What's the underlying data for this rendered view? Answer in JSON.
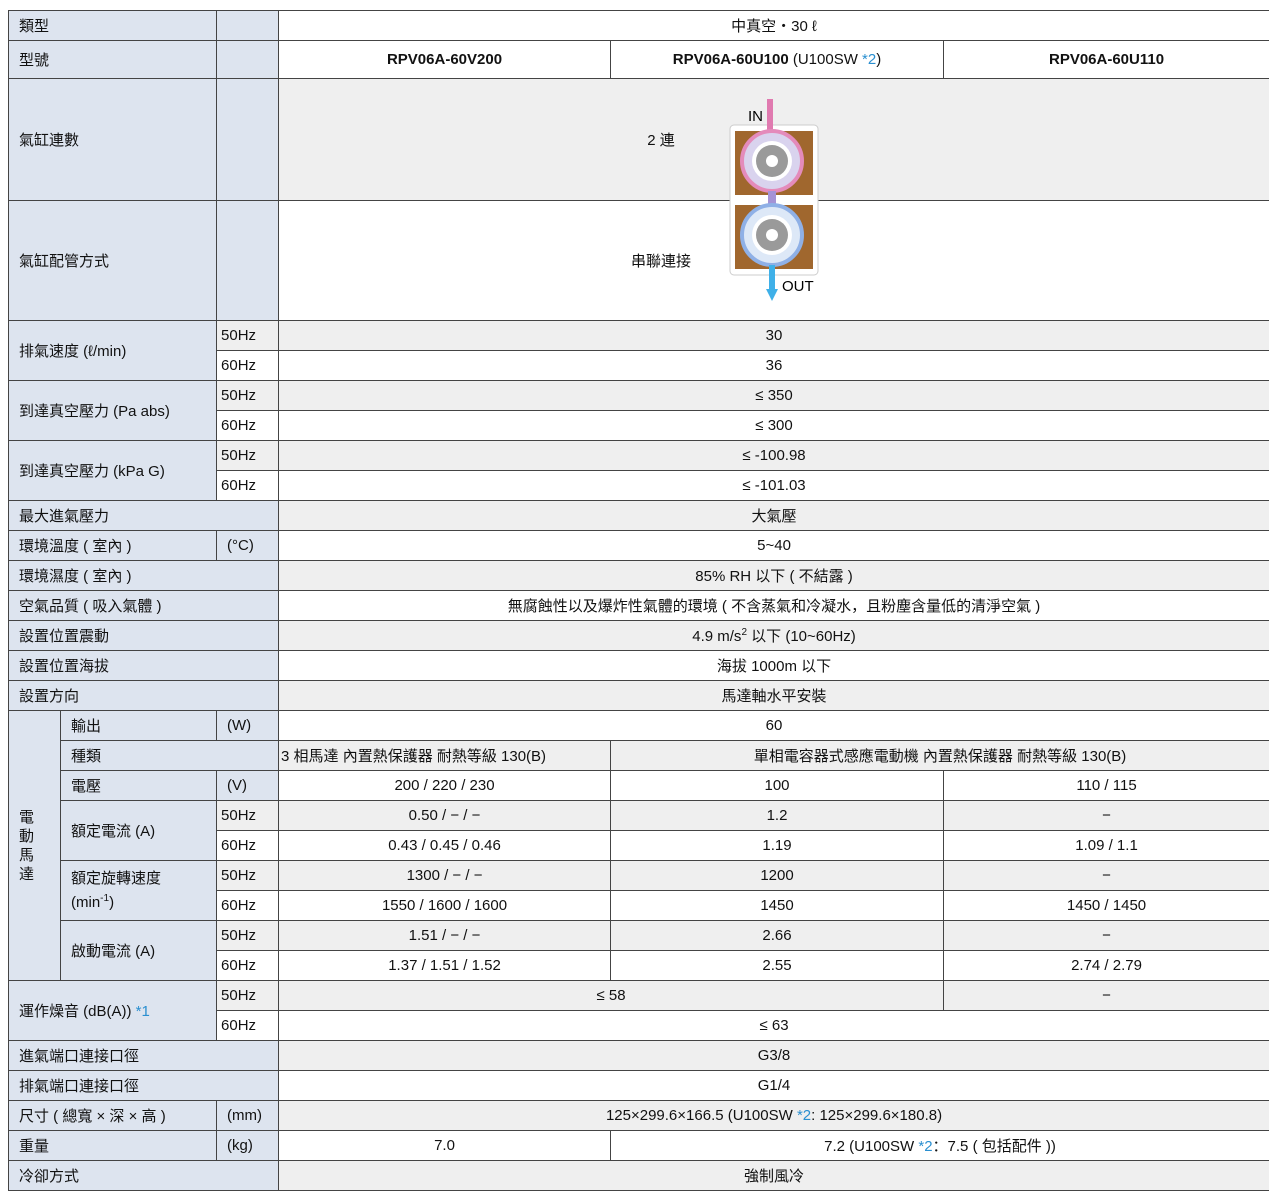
{
  "table": {
    "rows": [
      [
        "類型",
        "中真空・30 ℓ"
      ],
      [
        "型號",
        "RPV06A-60V200",
        [
          "RPV06A-60U100",
          " (U100SW ",
          "*2",
          ")"
        ],
        "RPV06A-60U110"
      ],
      [
        "氣缸連數",
        "2 連"
      ],
      [
        "氣缸配管方式",
        "串聯連接"
      ],
      [
        "排氣速度 (ℓ/min)",
        "50Hz",
        "30"
      ],
      [
        "60Hz",
        "36"
      ],
      [
        "到達真空壓力 (Pa abs)",
        "50Hz",
        "≤ 350"
      ],
      [
        "60Hz",
        "≤ 300"
      ],
      [
        "到達真空壓力 (kPa G)",
        "50Hz",
        "≤ -100.98"
      ],
      [
        "60Hz",
        "≤ -101.03"
      ],
      [
        "最大進氣壓力",
        "大氣壓"
      ],
      [
        "環境溫度 ( 室內 )",
        "(°C)",
        "5~40"
      ],
      [
        "環境濕度 ( 室內 )",
        "85% RH 以下 ( 不結露 )"
      ],
      [
        "空氣品質 ( 吸入氣體 )",
        "無腐蝕性以及爆炸性氣體的環境 ( 不含蒸氣和冷凝水，且粉塵含量低的清淨空氣 )"
      ],
      [
        "設置位置震動",
        [
          "4.9 m/s",
          "2",
          " 以下 (10~60Hz)"
        ]
      ],
      [
        "設置位置海拔",
        "海拔 1000m 以下"
      ],
      [
        "設置方向",
        "馬達軸水平安裝"
      ],
      [
        "電動馬達",
        "輸出",
        "(W)",
        "60"
      ],
      [
        "種類",
        "3 相馬達 內置熱保護器 耐熱等級 130(B)",
        "單相電容器式感應電動機 內置熱保護器 耐熱等級 130(B)"
      ],
      [
        "電壓",
        "(V)",
        "200 / 220 / 230",
        "100",
        "110 / 115"
      ],
      [
        "額定電流 (A)",
        "50Hz",
        "0.50 / − / −",
        "1.2",
        "−"
      ],
      [
        "60Hz",
        "0.43 / 0.45 / 0.46",
        "1.19",
        "1.09 / 1.1"
      ],
      [
        [
          "額定旋轉速度",
          "(min",
          "-1",
          ")"
        ],
        "50Hz",
        "1300 / − / −",
        "1200",
        "−"
      ],
      [
        "60Hz",
        "1550 / 1600 / 1600",
        "1450",
        "1450 / 1450"
      ],
      [
        "啟動電流 (A)",
        "50Hz",
        "1.51 / − / −",
        "2.66",
        "−"
      ],
      [
        "60Hz",
        "1.37 / 1.51 / 1.52",
        "2.55",
        "2.74 / 2.79"
      ],
      [
        [
          "運作燥音 (dB(A)) ",
          "*1"
        ],
        "50Hz",
        "≤ 58",
        "−"
      ],
      [
        "60Hz",
        "≤ 63"
      ],
      [
        "進氣端口連接口徑",
        "G3/8"
      ],
      [
        "排氣端口連接口徑",
        "G1/4"
      ],
      [
        "尺寸 ( 總寬 × 深 × 高 )",
        "(mm)",
        [
          "125×299.6×166.5 (U100SW ",
          "*2",
          ": 125×299.6×180.8)"
        ]
      ],
      [
        "重量",
        "(kg)",
        "7.0",
        [
          "7.2 (U100SW ",
          "*2",
          "：7.5 ( 包括配件 ))"
        ]
      ],
      [
        "冷卻方式",
        "強制風冷"
      ]
    ]
  },
  "diagram": {
    "in": "IN",
    "out": "OUT"
  }
}
